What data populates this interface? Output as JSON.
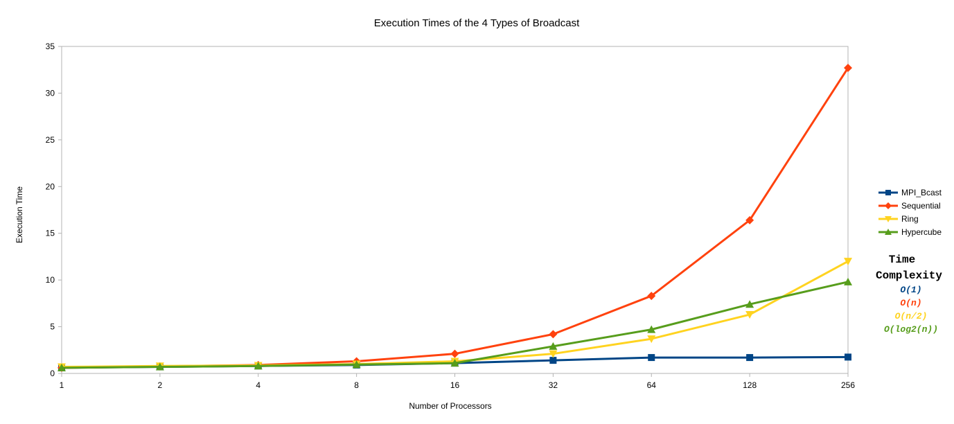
{
  "chart_data": {
    "type": "line",
    "title": "Execution Times of the 4 Types of Broadcast",
    "xlabel": "Number of Processors",
    "ylabel": "Execution Time",
    "categories": [
      "1",
      "2",
      "4",
      "8",
      "16",
      "32",
      "64",
      "128",
      "256"
    ],
    "ylim": [
      0,
      35
    ],
    "yticks": [
      0,
      5,
      10,
      15,
      20,
      25,
      30,
      35
    ],
    "grid": false,
    "legend_position": "right",
    "series": [
      {
        "name": "MPI_Bcast",
        "color": "#004586",
        "marker": "square",
        "values": [
          0.6,
          0.7,
          0.8,
          0.9,
          1.1,
          1.4,
          1.7,
          1.7,
          1.75
        ]
      },
      {
        "name": "Sequential",
        "color": "#ff420e",
        "marker": "diamond",
        "values": [
          0.6,
          0.75,
          0.9,
          1.3,
          2.1,
          4.2,
          8.3,
          16.4,
          32.7
        ]
      },
      {
        "name": "Ring",
        "color": "#ffd320",
        "marker": "triangle-down",
        "values": [
          0.7,
          0.8,
          0.85,
          1.0,
          1.3,
          2.1,
          3.7,
          6.3,
          12.0
        ]
      },
      {
        "name": "Hypercube",
        "color": "#579d1c",
        "marker": "triangle-up",
        "values": [
          0.6,
          0.7,
          0.8,
          0.95,
          1.1,
          2.9,
          4.7,
          7.4,
          9.8
        ]
      }
    ],
    "annotations": {
      "heading_line1": "Time",
      "heading_line2": "Complexity",
      "items": [
        {
          "text": "O(1)",
          "color": "#004586"
        },
        {
          "text": "O(n)",
          "color": "#ff420e"
        },
        {
          "text": "O(n/2)",
          "color": "#ffd320"
        },
        {
          "text": "O(log2(n))",
          "color": "#579d1c"
        }
      ]
    }
  }
}
